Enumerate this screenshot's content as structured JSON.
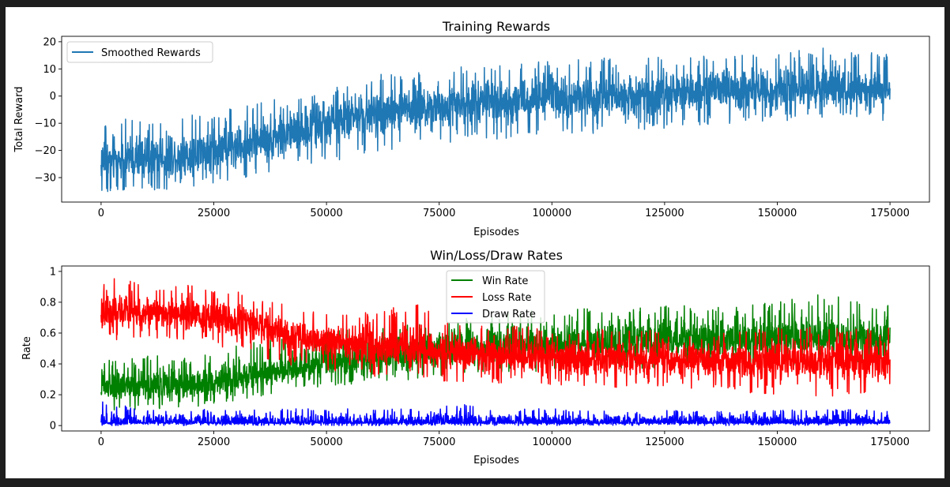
{
  "chart_data": [
    {
      "type": "line",
      "title": "Training Rewards",
      "xlabel": "Episodes",
      "ylabel": "Total Reward",
      "xlim": [
        -8750,
        183750
      ],
      "ylim": [
        -39,
        22
      ],
      "xticks": [
        0,
        25000,
        50000,
        75000,
        100000,
        125000,
        150000,
        175000
      ],
      "yticks": [
        -30,
        -20,
        -10,
        0,
        10,
        20
      ],
      "legend": "top-left",
      "grid": false,
      "series": [
        {
          "name": "Smoothed Rewards",
          "color": "#1f77b4",
          "x": [
            0,
            10000,
            20000,
            30000,
            40000,
            50000,
            60000,
            70000,
            80000,
            90000,
            100000,
            110000,
            120000,
            130000,
            140000,
            150000,
            160000,
            170000,
            175000
          ],
          "center": [
            -24,
            -23,
            -22,
            -19,
            -14,
            -10,
            -6,
            -4,
            -2.5,
            -1.5,
            -0.5,
            0,
            0.5,
            1.5,
            2,
            2.5,
            2.5,
            2.5,
            2.5
          ],
          "min": [
            -36,
            -35,
            -34,
            -31,
            -28,
            -24,
            -22,
            -18,
            -17,
            -16,
            -14,
            -14,
            -13,
            -11,
            -10,
            -9,
            -9,
            -9,
            -9
          ],
          "max": [
            -9,
            -8,
            -7,
            -4,
            0,
            4,
            8,
            10,
            11,
            12,
            13,
            14,
            14,
            15,
            15,
            16,
            18,
            16,
            16
          ]
        }
      ]
    },
    {
      "type": "line",
      "title": "Win/Loss/Draw Rates",
      "xlabel": "Episodes",
      "ylabel": "Rate",
      "xlim": [
        -8750,
        183750
      ],
      "ylim": [
        -0.035,
        1.035
      ],
      "xticks": [
        0,
        25000,
        50000,
        75000,
        100000,
        125000,
        150000,
        175000
      ],
      "yticks": [
        0.0,
        0.2,
        0.4,
        0.6,
        0.8,
        1.0
      ],
      "legend": "top-center",
      "grid": false,
      "series": [
        {
          "name": "Win Rate",
          "color": "#008000",
          "x": [
            0,
            10000,
            20000,
            30000,
            40000,
            50000,
            60000,
            70000,
            80000,
            90000,
            100000,
            110000,
            120000,
            130000,
            140000,
            150000,
            160000,
            170000,
            175000
          ],
          "center": [
            0.25,
            0.26,
            0.27,
            0.3,
            0.36,
            0.41,
            0.44,
            0.47,
            0.49,
            0.51,
            0.52,
            0.53,
            0.54,
            0.55,
            0.55,
            0.56,
            0.56,
            0.56,
            0.56
          ],
          "min": [
            0.1,
            0.1,
            0.12,
            0.15,
            0.22,
            0.25,
            0.28,
            0.3,
            0.33,
            0.34,
            0.35,
            0.36,
            0.37,
            0.38,
            0.38,
            0.39,
            0.39,
            0.39,
            0.39
          ],
          "max": [
            0.44,
            0.45,
            0.47,
            0.52,
            0.57,
            0.62,
            0.65,
            0.67,
            0.72,
            0.74,
            0.75,
            0.76,
            0.77,
            0.78,
            0.79,
            0.8,
            0.86,
            0.79,
            0.79
          ]
        },
        {
          "name": "Loss Rate",
          "color": "#ff0000",
          "x": [
            0,
            10000,
            20000,
            30000,
            40000,
            50000,
            60000,
            70000,
            80000,
            90000,
            100000,
            110000,
            120000,
            130000,
            140000,
            150000,
            160000,
            170000,
            175000
          ],
          "center": [
            0.74,
            0.73,
            0.72,
            0.68,
            0.6,
            0.55,
            0.52,
            0.49,
            0.47,
            0.46,
            0.45,
            0.44,
            0.43,
            0.43,
            0.42,
            0.42,
            0.42,
            0.42,
            0.42
          ],
          "min": [
            0.55,
            0.56,
            0.56,
            0.48,
            0.4,
            0.36,
            0.32,
            0.3,
            0.28,
            0.27,
            0.26,
            0.25,
            0.24,
            0.24,
            0.22,
            0.2,
            0.18,
            0.2,
            0.2
          ],
          "max": [
            1.0,
            0.92,
            0.91,
            0.87,
            0.79,
            0.74,
            0.74,
            0.79,
            0.66,
            0.65,
            0.64,
            0.63,
            0.62,
            0.62,
            0.61,
            0.64,
            0.64,
            0.64,
            0.64
          ]
        },
        {
          "name": "Draw Rate",
          "color": "#0000ff",
          "x": [
            0,
            10000,
            20000,
            30000,
            40000,
            50000,
            60000,
            70000,
            80000,
            90000,
            100000,
            110000,
            120000,
            130000,
            140000,
            150000,
            160000,
            170000,
            175000
          ],
          "center": [
            0.02,
            0.02,
            0.02,
            0.02,
            0.02,
            0.02,
            0.02,
            0.02,
            0.02,
            0.02,
            0.02,
            0.02,
            0.02,
            0.02,
            0.02,
            0.02,
            0.02,
            0.02,
            0.02
          ],
          "min": [
            0.0,
            0.0,
            0.0,
            0.0,
            0.0,
            0.0,
            0.0,
            0.0,
            0.0,
            0.0,
            0.0,
            0.0,
            0.0,
            0.0,
            0.0,
            0.0,
            0.0,
            0.0,
            0.0
          ],
          "max": [
            0.16,
            0.1,
            0.11,
            0.1,
            0.11,
            0.11,
            0.11,
            0.11,
            0.14,
            0.11,
            0.11,
            0.1,
            0.1,
            0.1,
            0.1,
            0.1,
            0.11,
            0.1,
            0.1
          ]
        }
      ]
    }
  ]
}
